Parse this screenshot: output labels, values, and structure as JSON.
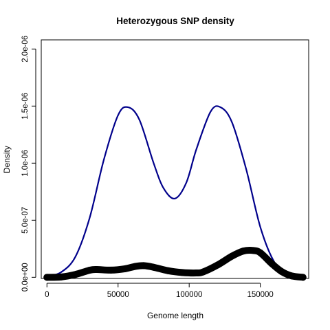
{
  "chart_data": {
    "type": "line",
    "title": "Heterozygous SNP density",
    "xlabel": "Genome length",
    "ylabel": "Density",
    "xlim": [
      -4000,
      184000
    ],
    "ylim": [
      -1e-08,
      2.08e-06
    ],
    "x_ticks": [
      0,
      50000,
      100000,
      150000
    ],
    "x_tick_labels": [
      "0",
      "50000",
      "100000",
      "150000"
    ],
    "y_ticks": [
      0,
      5e-07,
      1e-06,
      1.5e-06,
      2e-06
    ],
    "y_tick_labels": [
      "0.0e+00",
      "5.0e-07",
      "1.0e-06",
      "1.5e-06",
      "2.0e-06"
    ],
    "grid": false,
    "legend": "none",
    "series": [
      {
        "color": "#00008b",
        "style": "line",
        "x": [
          0,
          10000,
          20000,
          30000,
          40000,
          50000,
          57000,
          65000,
          75000,
          82000,
          90000,
          98000,
          105000,
          115000,
          122000,
          130000,
          140000,
          150000,
          160000,
          170000,
          180000
        ],
        "y": [
          5e-09,
          4.5e-08,
          1.8e-07,
          5.2e-07,
          1.03e-06,
          1.42e-06,
          1.49e-06,
          1.38e-06,
          1e-06,
          7.8e-07,
          6.9e-07,
          8.3e-07,
          1.12e-06,
          1.45e-06,
          1.49e-06,
          1.36e-06,
          9.5e-07,
          4.4e-07,
          1.3e-07,
          2.5e-08,
          3e-09
        ]
      },
      {
        "color": "#000000",
        "style": "thick-points",
        "x": [
          0,
          10000,
          20000,
          30000,
          35000,
          45000,
          55000,
          62000,
          68000,
          75000,
          85000,
          95000,
          105000,
          110000,
          120000,
          130000,
          138000,
          145000,
          150000,
          158000,
          165000,
          172000,
          180000
        ],
        "y": [
          0,
          3e-09,
          2.5e-08,
          6.2e-08,
          6.8e-08,
          6.3e-08,
          7.5e-08,
          9.5e-08,
          1.02e-07,
          8.8e-08,
          5.8e-08,
          4.2e-08,
          3.8e-08,
          4.8e-08,
          1.08e-07,
          1.85e-07,
          2.3e-07,
          2.35e-07,
          2.15e-07,
          1.2e-07,
          5e-08,
          1.2e-08,
          0
        ]
      }
    ]
  }
}
